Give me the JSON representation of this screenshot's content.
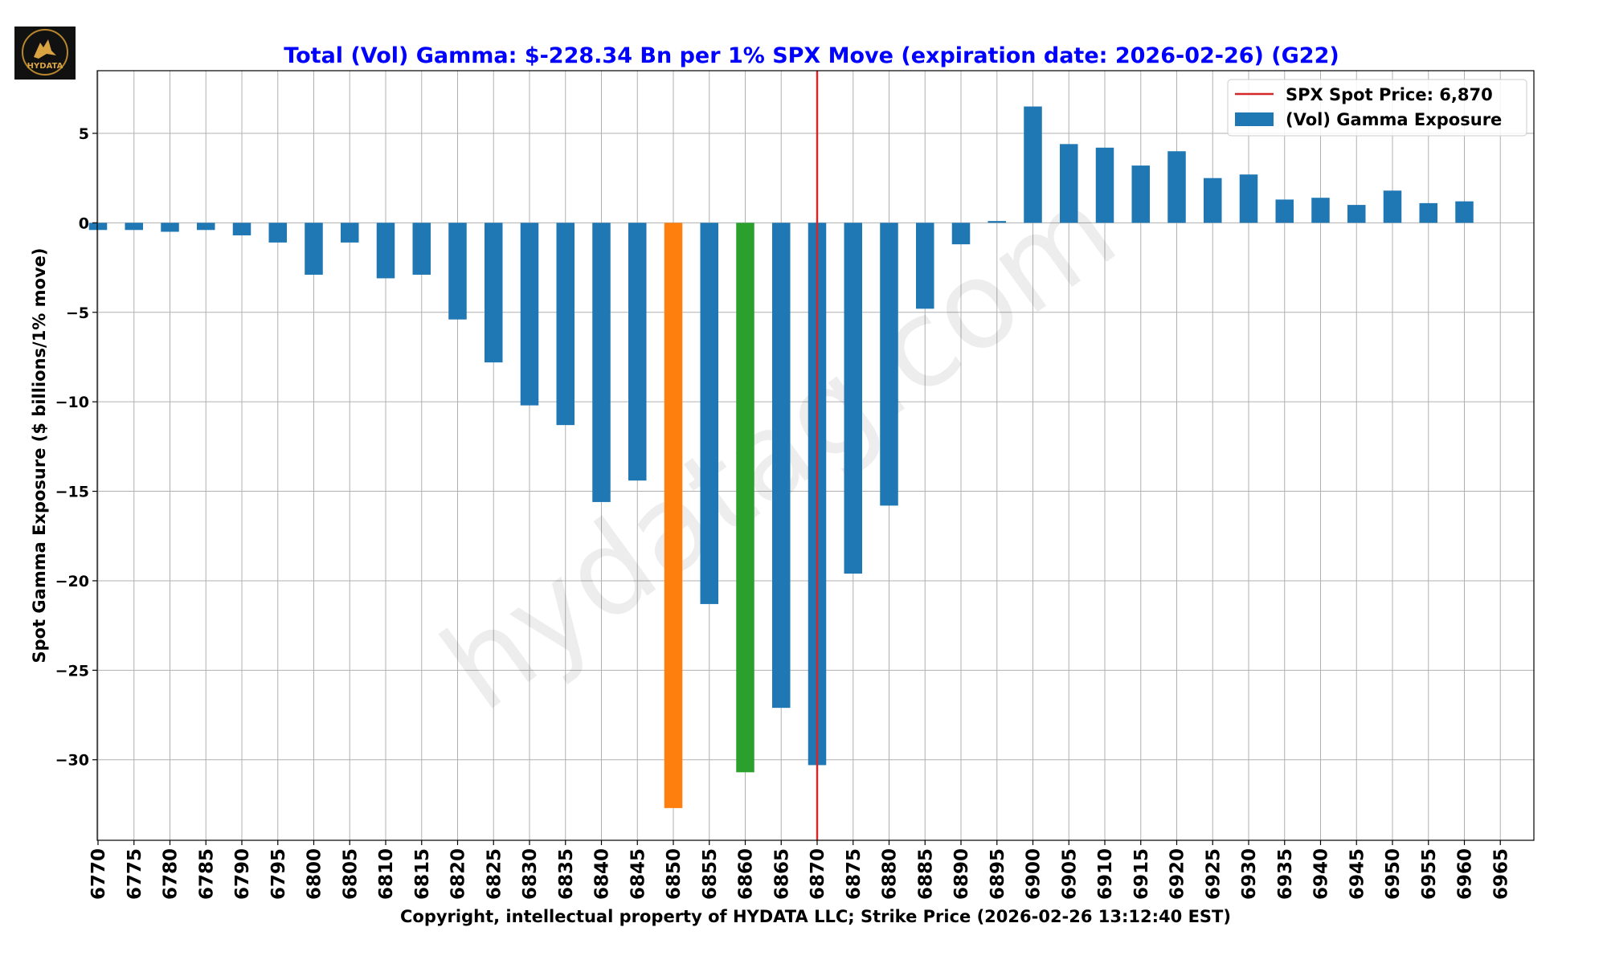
{
  "logo": {
    "text": "HYDATA"
  },
  "watermark": "hydatag.com",
  "chart_data": {
    "type": "bar",
    "title": "Total (Vol) Gamma: $-228.34 Bn per 1% SPX Move (expiration date: 2026-02-26) (G22)",
    "xlabel": "Copyright, intellectual property of HYDATA LLC; Strike Price (2026-02-26 13:12:40 EST)",
    "ylabel": "Spot Gamma Exposure ($ billions/1% move)",
    "ylim": [
      -34.5,
      8.5
    ],
    "yticks": [
      5,
      0,
      -5,
      -10,
      -15,
      -20,
      -25,
      -30
    ],
    "ytick_labels": [
      "5",
      "0",
      "−5",
      "−10",
      "−15",
      "−20",
      "−25",
      "−30"
    ],
    "grid": true,
    "legend_position": "top-right",
    "spot": {
      "label": "SPX Spot Price: 6,870",
      "value": 6870,
      "color": "#d62728"
    },
    "series": [
      {
        "name": "(Vol) Gamma Exposure",
        "color": "#1f77b4"
      }
    ],
    "highlight_colors": {
      "6850": "#ff7f0e",
      "6860": "#2ca02c"
    },
    "categories": [
      "6770",
      "6775",
      "6780",
      "6785",
      "6790",
      "6795",
      "6800",
      "6805",
      "6810",
      "6815",
      "6820",
      "6825",
      "6830",
      "6835",
      "6840",
      "6845",
      "6850",
      "6855",
      "6860",
      "6865",
      "6870",
      "6875",
      "6880",
      "6885",
      "6890",
      "6895",
      "6900",
      "6905",
      "6910",
      "6915",
      "6920",
      "6925",
      "6930",
      "6935",
      "6940",
      "6945",
      "6950",
      "6955",
      "6960",
      "6965"
    ],
    "values": [
      -0.4,
      -0.4,
      -0.5,
      -0.4,
      -0.7,
      -1.1,
      -2.9,
      -1.1,
      -3.1,
      -2.9,
      -5.4,
      -7.8,
      -10.2,
      -11.3,
      -15.6,
      -14.4,
      -32.7,
      -21.3,
      -30.7,
      -27.1,
      -30.3,
      -19.6,
      -15.8,
      -4.8,
      -1.2,
      0.1,
      6.5,
      4.4,
      4.2,
      3.2,
      4.0,
      2.5,
      2.7,
      1.3,
      1.4,
      1.0,
      1.8,
      1.1,
      1.2,
      0.0
    ]
  }
}
